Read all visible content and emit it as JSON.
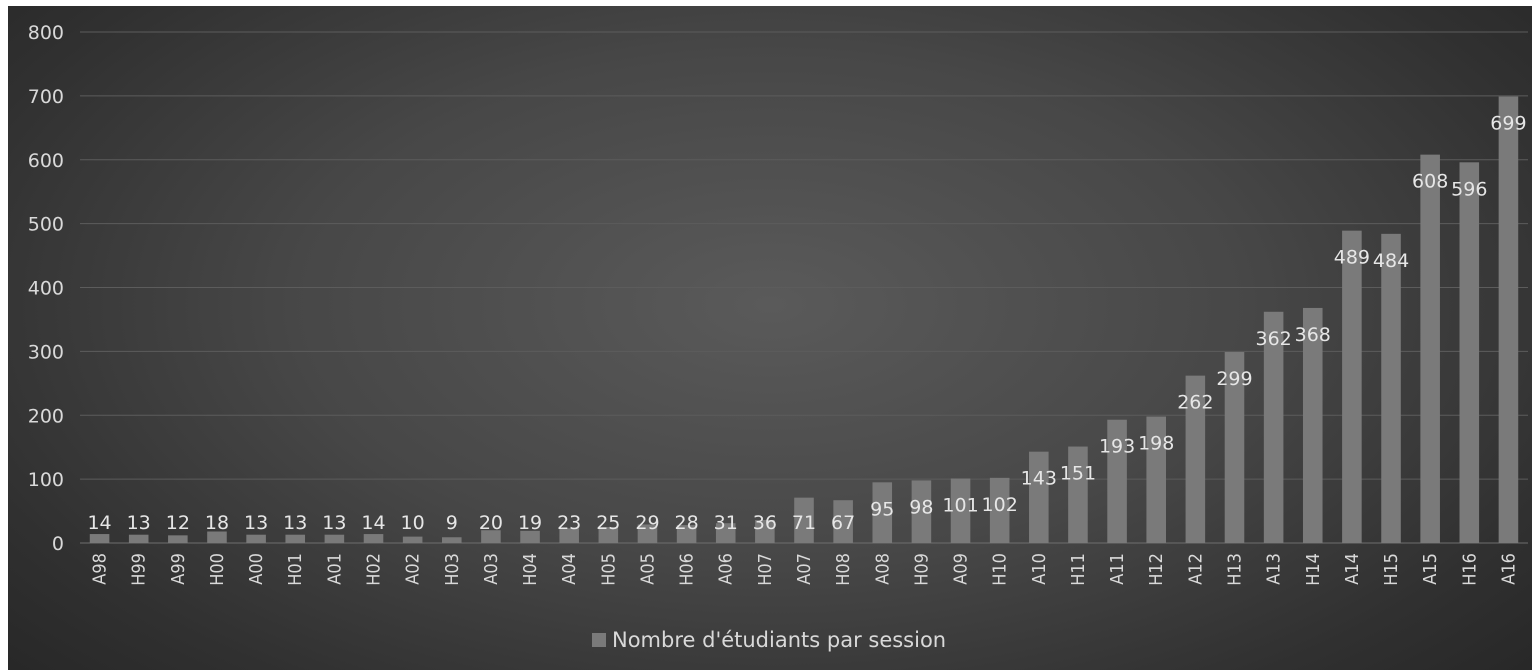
{
  "chart_data": {
    "type": "bar",
    "categories": [
      "A98",
      "H99",
      "A99",
      "H00",
      "A00",
      "H01",
      "A01",
      "H02",
      "A02",
      "H03",
      "A03",
      "H04",
      "A04",
      "H05",
      "A05",
      "H06",
      "A06",
      "H07",
      "A07",
      "H08",
      "A08",
      "H09",
      "A09",
      "H10",
      "A10",
      "H11",
      "A11",
      "H12",
      "A12",
      "H13",
      "A13",
      "H14",
      "A14",
      "H15",
      "A15",
      "H16",
      "A16"
    ],
    "series": [
      {
        "name": "Nombre d'étudiants par session",
        "values": [
          14,
          13,
          12,
          18,
          13,
          13,
          13,
          14,
          10,
          9,
          20,
          19,
          23,
          25,
          29,
          28,
          31,
          36,
          71,
          67,
          95,
          98,
          101,
          102,
          143,
          151,
          193,
          198,
          262,
          299,
          362,
          368,
          489,
          484,
          608,
          596,
          699
        ]
      }
    ],
    "ylim": [
      0,
      800
    ],
    "yticks": [
      0,
      100,
      200,
      300,
      400,
      500,
      600,
      700,
      800
    ],
    "title": "",
    "xlabel": "",
    "ylabel": "",
    "grid": true,
    "legend_position": "bottom",
    "data_labels": true,
    "colors": {
      "bar": "#7a7a7a",
      "background": "#474747",
      "gridline": "#5c5c5c",
      "text": "#d9d9d9"
    }
  }
}
